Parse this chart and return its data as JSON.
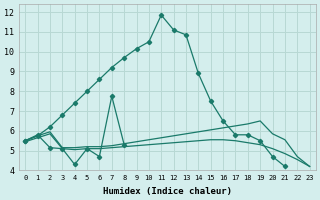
{
  "xlabel": "Humidex (Indice chaleur)",
  "bg_color": "#d4eeed",
  "grid_color": "#b8d8d4",
  "line_color": "#1a7a6a",
  "xlim": [
    -0.5,
    23.5
  ],
  "ylim": [
    4,
    12.4
  ],
  "xticks": [
    0,
    1,
    2,
    3,
    4,
    5,
    6,
    7,
    8,
    9,
    10,
    11,
    12,
    13,
    14,
    15,
    16,
    17,
    18,
    19,
    20,
    21,
    22,
    23
  ],
  "yticks": [
    4,
    5,
    6,
    7,
    8,
    9,
    10,
    11,
    12
  ],
  "series": [
    {
      "x": [
        0,
        1,
        2,
        3,
        4,
        5,
        6,
        7,
        8,
        9,
        10,
        11,
        12,
        13,
        14,
        15,
        16,
        17,
        18,
        19,
        20,
        21,
        22,
        23
      ],
      "y": [
        5.5,
        5.75,
        6.2,
        6.8,
        7.4,
        8.0,
        8.6,
        9.2,
        9.7,
        10.15,
        10.5,
        11.85,
        11.1,
        10.85,
        8.9,
        7.5,
        6.5,
        5.8,
        5.8,
        5.5,
        4.7,
        4.2,
        null,
        null
      ],
      "marker": true
    },
    {
      "x": [
        0,
        1,
        2,
        3,
        4,
        5,
        6,
        7,
        8,
        9,
        10,
        11,
        12,
        13,
        14,
        15,
        16,
        17,
        18,
        19,
        20,
        21,
        22,
        23
      ],
      "y": [
        5.5,
        5.8,
        5.15,
        5.1,
        4.3,
        5.1,
        4.7,
        7.75,
        5.3,
        null,
        null,
        null,
        null,
        null,
        null,
        null,
        null,
        null,
        null,
        null,
        null,
        null,
        null,
        null
      ],
      "marker": true
    },
    {
      "x": [
        0,
        1,
        2,
        3,
        4,
        5,
        6,
        7,
        8,
        9,
        10,
        11,
        12,
        13,
        14,
        15,
        16,
        17,
        18,
        19,
        20,
        21,
        22,
        23
      ],
      "y": [
        5.5,
        5.75,
        5.95,
        5.15,
        5.15,
        5.2,
        5.2,
        5.25,
        5.35,
        5.45,
        5.55,
        5.65,
        5.75,
        5.85,
        5.95,
        6.05,
        6.15,
        6.25,
        6.35,
        6.5,
        5.85,
        5.55,
        4.7,
        4.2
      ],
      "marker": false
    },
    {
      "x": [
        0,
        1,
        2,
        3,
        4,
        5,
        6,
        7,
        8,
        9,
        10,
        11,
        12,
        13,
        14,
        15,
        16,
        17,
        18,
        19,
        20,
        21,
        22,
        23
      ],
      "y": [
        5.45,
        5.65,
        5.85,
        5.1,
        5.05,
        5.1,
        5.1,
        5.15,
        5.2,
        5.25,
        5.3,
        5.35,
        5.4,
        5.45,
        5.5,
        5.55,
        5.55,
        5.5,
        5.4,
        5.3,
        5.1,
        4.85,
        4.55,
        4.2
      ],
      "marker": false
    }
  ]
}
